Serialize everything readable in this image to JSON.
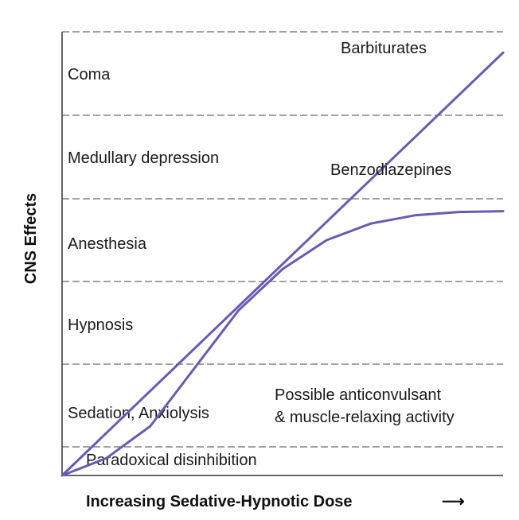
{
  "chart_data": {
    "type": "line",
    "xlabel": "Increasing Sedative-Hypnotic Dose",
    "xlabel_arrow": "⟶",
    "ylabel": "CNS Effects",
    "bands": [
      "Paradoxical disinhibition",
      "Sedation, Anxiolysis",
      "Hypnosis",
      "Anesthesia",
      "Medullary depression",
      "Coma"
    ],
    "annotation": [
      "Possible anticonvulsant",
      "& muscle-relaxing activity"
    ],
    "series": [
      {
        "name": "Barbiturates",
        "color": "#6b5ab0",
        "points": [
          [
            0,
            0
          ],
          [
            100,
            5.75
          ]
        ]
      },
      {
        "name": "Benzodiazepines",
        "color": "#6b5ab0",
        "points": [
          [
            0,
            0
          ],
          [
            10,
            0.6
          ],
          [
            20,
            1.25
          ],
          [
            30,
            1.95
          ],
          [
            35,
            2.3
          ],
          [
            40,
            2.65
          ],
          [
            50,
            3.15
          ],
          [
            60,
            3.5
          ],
          [
            70,
            3.7
          ],
          [
            80,
            3.8
          ],
          [
            90,
            3.84
          ],
          [
            100,
            3.85
          ]
        ]
      }
    ],
    "xlim": [
      0,
      100
    ],
    "ylim": [
      0,
      6
    ],
    "grid": "dashed horizontal band boundaries"
  }
}
